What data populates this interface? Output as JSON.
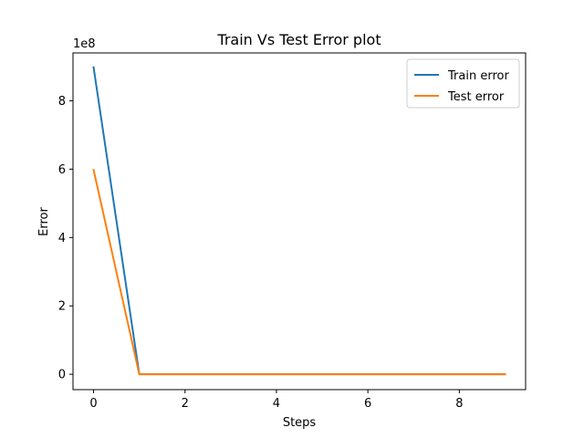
{
  "chart_data": {
    "type": "line",
    "title": "Train Vs Test Error plot",
    "xlabel": "Steps",
    "ylabel": "Error",
    "y_offset_label": "1e8",
    "x_ticks": [
      0,
      2,
      4,
      6,
      8
    ],
    "y_ticks": [
      0,
      2,
      4,
      6,
      8
    ],
    "xlim": [
      -0.45,
      9.45
    ],
    "ylim": [
      -0.45,
      9.4
    ],
    "legend_position": "top-right",
    "grid": false,
    "x": [
      0,
      1,
      2,
      3,
      4,
      5,
      6,
      7,
      8,
      9
    ],
    "series": [
      {
        "name": "Train error",
        "color": "#1f77b4",
        "values": [
          8.98,
          0,
          0,
          0,
          0,
          0,
          0,
          0,
          0,
          0
        ]
      },
      {
        "name": "Test error",
        "color": "#ff7f0e",
        "values": [
          5.98,
          0,
          0,
          0,
          0,
          0,
          0,
          0,
          0,
          0
        ]
      }
    ]
  }
}
